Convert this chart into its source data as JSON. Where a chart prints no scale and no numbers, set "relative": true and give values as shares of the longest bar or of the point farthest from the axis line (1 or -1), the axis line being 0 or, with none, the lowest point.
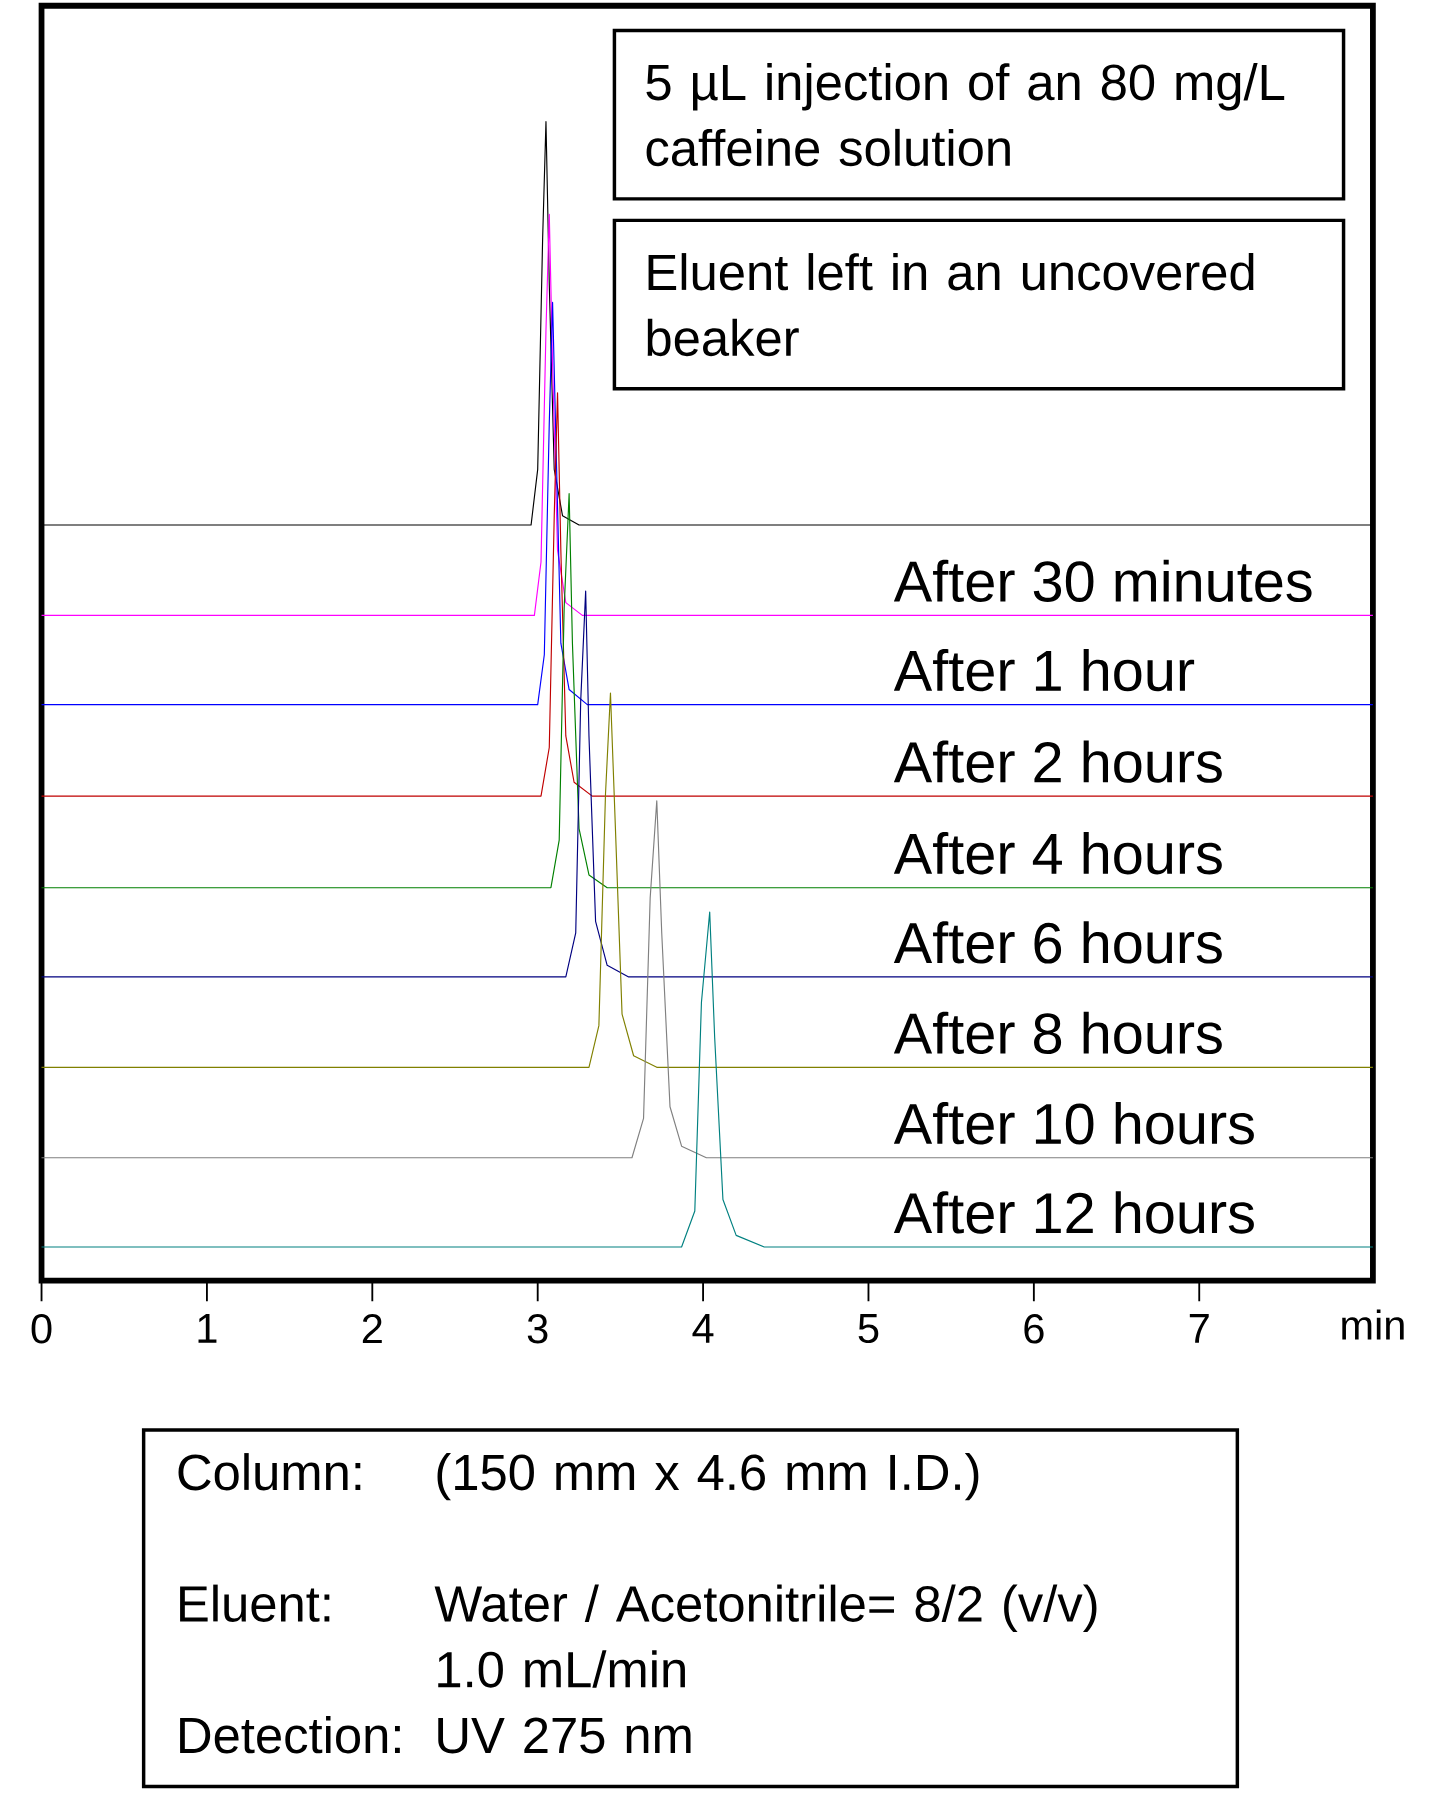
{
  "chart_data": {
    "type": "line",
    "relative": true,
    "xlabel": "min",
    "xlim": [
      0,
      8.05
    ],
    "xticks": [
      0,
      1,
      2,
      3,
      4,
      5,
      6,
      7
    ],
    "series": [
      {
        "color": "#000000",
        "x": [
          0,
          2.96,
          3.0,
          3.03,
          3.05,
          3.07,
          3.1,
          3.15,
          3.25,
          8.05
        ],
        "values": [
          0.652,
          0.652,
          0.7,
          0.9,
          1.0,
          0.86,
          0.7,
          0.66,
          0.652,
          0.652
        ]
      },
      {
        "name": "After 30 minutes",
        "color": "#ff00ff",
        "x": [
          0,
          2.98,
          3.02,
          3.05,
          3.07,
          3.09,
          3.12,
          3.17,
          3.27,
          8.05
        ],
        "values": [
          0.574,
          0.574,
          0.62,
          0.82,
          0.92,
          0.79,
          0.63,
          0.585,
          0.574,
          0.574
        ]
      },
      {
        "name": "After 1 hour",
        "color": "#0000ff",
        "x": [
          0,
          3.0,
          3.04,
          3.07,
          3.09,
          3.11,
          3.14,
          3.19,
          3.3,
          8.05
        ],
        "values": [
          0.497,
          0.497,
          0.54,
          0.74,
          0.844,
          null,
          0.55,
          0.51,
          0.497,
          0.497
        ]
      },
      {
        "name": "After 2 hours",
        "color": "#c00000",
        "x": [
          0,
          3.02,
          3.07,
          3.1,
          3.12,
          3.14,
          3.17,
          3.22,
          3.33,
          8.05
        ],
        "values": [
          0.418,
          0.418,
          0.46,
          0.66,
          0.766,
          0.63,
          0.47,
          0.43,
          0.418,
          0.418
        ]
      },
      {
        "name": "After 4 hours",
        "color": "#008000",
        "x": [
          0,
          3.08,
          3.13,
          3.16,
          3.19,
          3.21,
          3.25,
          3.31,
          3.42,
          8.05
        ],
        "values": [
          0.339,
          0.339,
          0.38,
          0.58,
          0.679,
          0.55,
          0.39,
          0.35,
          0.339,
          0.339
        ]
      },
      {
        "name": "After 6 hours",
        "color": "#000080",
        "x": [
          0,
          3.17,
          3.23,
          3.26,
          3.29,
          3.31,
          3.35,
          3.42,
          3.55,
          8.05
        ],
        "values": [
          0.262,
          0.262,
          0.3,
          0.5,
          0.595,
          0.47,
          0.31,
          0.272,
          0.262,
          0.262
        ]
      },
      {
        "name": "After 8 hours",
        "color": "#808000",
        "x": [
          0,
          3.31,
          3.37,
          3.41,
          3.44,
          3.47,
          3.51,
          3.58,
          3.72,
          8.05
        ],
        "values": [
          0.184,
          0.184,
          0.22,
          0.42,
          0.507,
          0.39,
          0.23,
          0.194,
          0.184,
          0.184
        ]
      },
      {
        "name": "After 10 hours",
        "color": "#808080",
        "x": [
          0,
          3.57,
          3.64,
          3.68,
          3.72,
          3.75,
          3.8,
          3.87,
          4.02,
          8.05
        ],
        "values": [
          0.106,
          0.106,
          0.14,
          0.33,
          0.414,
          0.3,
          0.15,
          0.116,
          0.106,
          0.106
        ]
      },
      {
        "name": "After 12 hours",
        "color": "#008080",
        "x": [
          0,
          3.87,
          3.95,
          3.99,
          4.04,
          4.07,
          4.12,
          4.2,
          4.37,
          8.05
        ],
        "values": [
          0.029,
          0.029,
          0.06,
          0.24,
          0.318,
          0.21,
          0.07,
          0.039,
          0.029,
          0.029
        ]
      }
    ],
    "annotations": [
      "5 µL injection of an 80 mg/L caffeine solution",
      "Eluent left in an uncovered beaker",
      "Column:",
      "(150 mm x 4.6 mm I.D.)",
      "Eluent:",
      "Water / Acetonitrile= 8/2 (v/v)",
      "1.0 mL/min",
      "Detection:",
      "UV 275 nm"
    ]
  }
}
